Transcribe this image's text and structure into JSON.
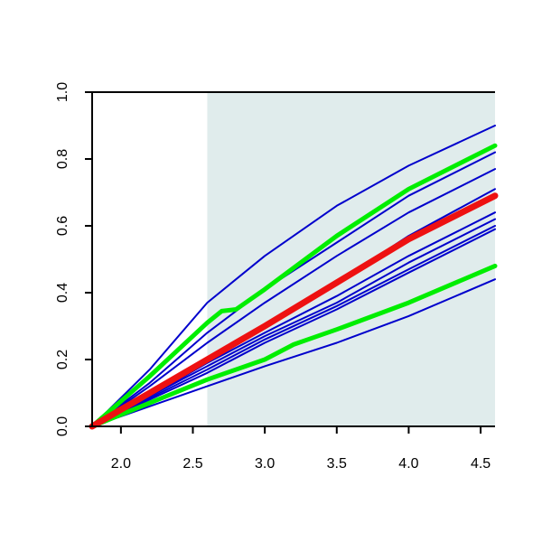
{
  "chart_data": {
    "type": "line",
    "title": "",
    "xlabel": "",
    "ylabel": "",
    "xlim": [
      1.8,
      4.6
    ],
    "ylim": [
      0.0,
      1.0
    ],
    "x_ticks": [
      2.0,
      2.5,
      3.0,
      3.5,
      4.0,
      4.5
    ],
    "x_tick_labels": [
      "2.0",
      "2.5",
      "3.0",
      "3.5",
      "4.0",
      "4.5"
    ],
    "y_ticks": [
      0.0,
      0.2,
      0.4,
      0.6,
      0.8,
      1.0
    ],
    "y_tick_labels": [
      "0.0",
      "0.2",
      "0.4",
      "0.6",
      "0.8",
      "1.0"
    ],
    "y_tick_rotation": "vertical",
    "grid": false,
    "legend": "none",
    "shaded_region": {
      "x_from": 2.6,
      "x_to": 4.6,
      "color": "#e0ecec"
    },
    "colors": {
      "ensemble": "#0000cc",
      "bounds": "#00ee00",
      "central": "#ee1111"
    },
    "series": [
      {
        "role": "ensemble",
        "points": [
          [
            1.8,
            0.0
          ],
          [
            2.2,
            0.17
          ],
          [
            2.6,
            0.37
          ],
          [
            3.0,
            0.51
          ],
          [
            3.5,
            0.66
          ],
          [
            4.0,
            0.78
          ],
          [
            4.6,
            0.9
          ]
        ]
      },
      {
        "role": "ensemble",
        "points": [
          [
            1.8,
            0.0
          ],
          [
            2.2,
            0.13
          ],
          [
            2.6,
            0.28
          ],
          [
            3.0,
            0.41
          ],
          [
            3.5,
            0.55
          ],
          [
            4.0,
            0.69
          ],
          [
            4.6,
            0.82
          ]
        ]
      },
      {
        "role": "ensemble",
        "points": [
          [
            1.8,
            0.0
          ],
          [
            2.2,
            0.12
          ],
          [
            2.6,
            0.25
          ],
          [
            3.0,
            0.37
          ],
          [
            3.5,
            0.51
          ],
          [
            4.0,
            0.64
          ],
          [
            4.6,
            0.77
          ]
        ]
      },
      {
        "role": "ensemble",
        "points": [
          [
            1.8,
            0.0
          ],
          [
            2.2,
            0.1
          ],
          [
            2.6,
            0.2
          ],
          [
            3.0,
            0.3
          ],
          [
            3.5,
            0.43
          ],
          [
            4.0,
            0.57
          ],
          [
            4.6,
            0.71
          ]
        ]
      },
      {
        "role": "ensemble",
        "points": [
          [
            1.8,
            0.0
          ],
          [
            2.2,
            0.09
          ],
          [
            2.6,
            0.19
          ],
          [
            3.0,
            0.28
          ],
          [
            3.5,
            0.39
          ],
          [
            4.0,
            0.51
          ],
          [
            4.6,
            0.64
          ]
        ]
      },
      {
        "role": "ensemble",
        "points": [
          [
            1.8,
            0.0
          ],
          [
            2.2,
            0.09
          ],
          [
            2.6,
            0.18
          ],
          [
            3.0,
            0.27
          ],
          [
            3.5,
            0.37
          ],
          [
            4.0,
            0.49
          ],
          [
            4.6,
            0.62
          ]
        ]
      },
      {
        "role": "ensemble",
        "points": [
          [
            1.8,
            0.0
          ],
          [
            2.2,
            0.085
          ],
          [
            2.6,
            0.17
          ],
          [
            3.0,
            0.26
          ],
          [
            3.5,
            0.36
          ],
          [
            4.0,
            0.47
          ],
          [
            4.6,
            0.6
          ]
        ]
      },
      {
        "role": "ensemble",
        "points": [
          [
            1.8,
            0.0
          ],
          [
            2.2,
            0.08
          ],
          [
            2.6,
            0.16
          ],
          [
            3.0,
            0.25
          ],
          [
            3.5,
            0.35
          ],
          [
            4.0,
            0.46
          ],
          [
            4.6,
            0.59
          ]
        ]
      },
      {
        "role": "ensemble",
        "points": [
          [
            1.8,
            0.0
          ],
          [
            2.2,
            0.06
          ],
          [
            2.6,
            0.12
          ],
          [
            3.0,
            0.18
          ],
          [
            3.5,
            0.25
          ],
          [
            4.0,
            0.33
          ],
          [
            4.6,
            0.44
          ]
        ]
      },
      {
        "role": "bounds",
        "points": [
          [
            1.8,
            0.0
          ],
          [
            2.2,
            0.15
          ],
          [
            2.6,
            0.31
          ],
          [
            2.7,
            0.345
          ],
          [
            2.8,
            0.35
          ],
          [
            3.0,
            0.41
          ],
          [
            3.5,
            0.57
          ],
          [
            4.0,
            0.71
          ],
          [
            4.6,
            0.84
          ]
        ]
      },
      {
        "role": "bounds",
        "points": [
          [
            1.8,
            0.0
          ],
          [
            2.2,
            0.07
          ],
          [
            2.6,
            0.14
          ],
          [
            3.0,
            0.2
          ],
          [
            3.2,
            0.245
          ],
          [
            3.3,
            0.26
          ],
          [
            3.5,
            0.29
          ],
          [
            4.0,
            0.37
          ],
          [
            4.6,
            0.48
          ]
        ]
      },
      {
        "role": "central",
        "points": [
          [
            1.8,
            0.0
          ],
          [
            2.2,
            0.1
          ],
          [
            2.6,
            0.2
          ],
          [
            3.0,
            0.3
          ],
          [
            3.5,
            0.43
          ],
          [
            4.0,
            0.56
          ],
          [
            4.6,
            0.69
          ]
        ]
      }
    ]
  }
}
